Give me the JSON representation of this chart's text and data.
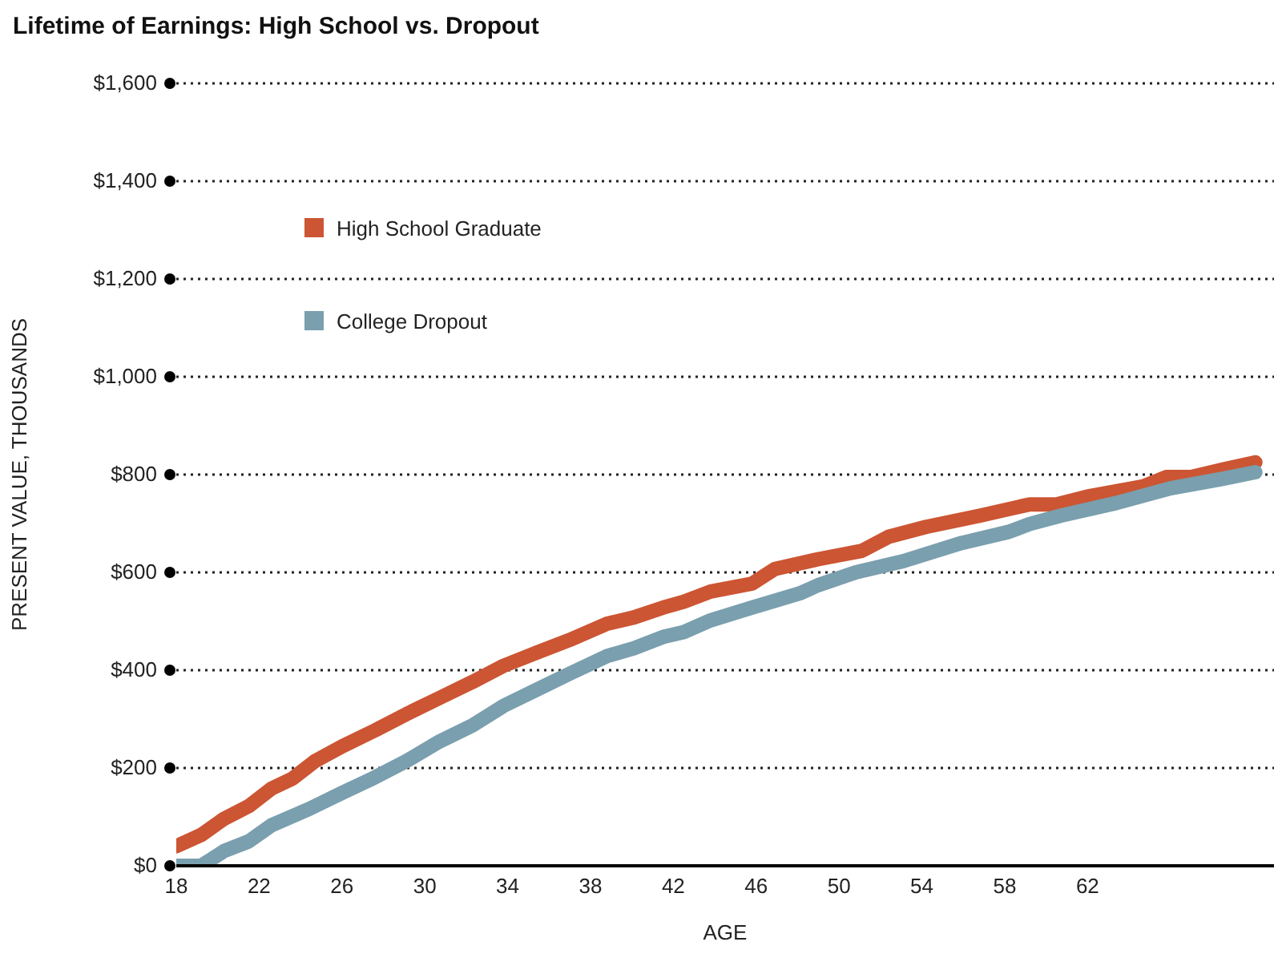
{
  "chart_data": {
    "type": "line",
    "title": "Lifetime of Earnings: High School vs. Dropout",
    "xlabel": "AGE",
    "ylabel": "PRESENT VALUE, THOUSANDS",
    "series": [
      {
        "name": "High School Graduate",
        "color": "#cc5533",
        "x": [
          18,
          19.2,
          20.3,
          21.5,
          22.6,
          23.6,
          24.7,
          26,
          27.6,
          29.1,
          30.7,
          32.3,
          33.8,
          35.4,
          37,
          38.8,
          40.1,
          41.5,
          42.5,
          43.8,
          45.8,
          46.9,
          49,
          51.1,
          52.4,
          54.2,
          56.8,
          59.2,
          60.5,
          62.1,
          64.7,
          65.8,
          67,
          68.6,
          70.1
        ],
        "values": [
          40,
          63,
          96,
          122,
          158,
          178,
          214,
          244,
          277,
          310,
          343,
          376,
          409,
          436,
          462,
          495,
          508,
          528,
          540,
          561,
          577,
          607,
          627,
          644,
          673,
          693,
          716,
          739,
          739,
          756,
          776,
          795,
          795,
          811,
          825
        ]
      },
      {
        "name": "College Dropout",
        "color": "#7a9fae",
        "x": [
          18,
          19.2,
          20.3,
          21.5,
          22.6,
          24.4,
          26,
          27.6,
          29.1,
          30.7,
          32.3,
          33.8,
          35.4,
          37,
          38.8,
          40.1,
          41.5,
          42.5,
          43.8,
          45.8,
          48.1,
          49,
          50.8,
          53.1,
          55.9,
          58.2,
          59.2,
          60.7,
          63.4,
          66,
          68.6,
          70.1
        ],
        "values": [
          0,
          0,
          30,
          50,
          83,
          116,
          149,
          181,
          214,
          254,
          287,
          327,
          360,
          393,
          429,
          445,
          468,
          478,
          502,
          528,
          557,
          574,
          600,
          623,
          660,
          683,
          699,
          716,
          742,
          772,
          792,
          805
        ]
      }
    ],
    "xlim": [
      18,
      71
    ],
    "xticks": [
      18,
      22,
      26,
      30,
      34,
      38,
      42,
      46,
      50,
      54,
      58,
      62
    ],
    "ylim": [
      0,
      1600
    ],
    "yticks": [
      {
        "value": 0,
        "label": "$0"
      },
      {
        "value": 200,
        "label": "$200"
      },
      {
        "value": 400,
        "label": "$400"
      },
      {
        "value": 600,
        "label": "$600"
      },
      {
        "value": 800,
        "label": "$800"
      },
      {
        "value": 1000,
        "label": "$1,000"
      },
      {
        "value": 1200,
        "label": "$1,200"
      },
      {
        "value": 1400,
        "label": "$1,400"
      },
      {
        "value": 1600,
        "label": "$1,600"
      }
    ],
    "grid": "y",
    "legend": "top left",
    "marker": "none",
    "line_style": "solid"
  }
}
